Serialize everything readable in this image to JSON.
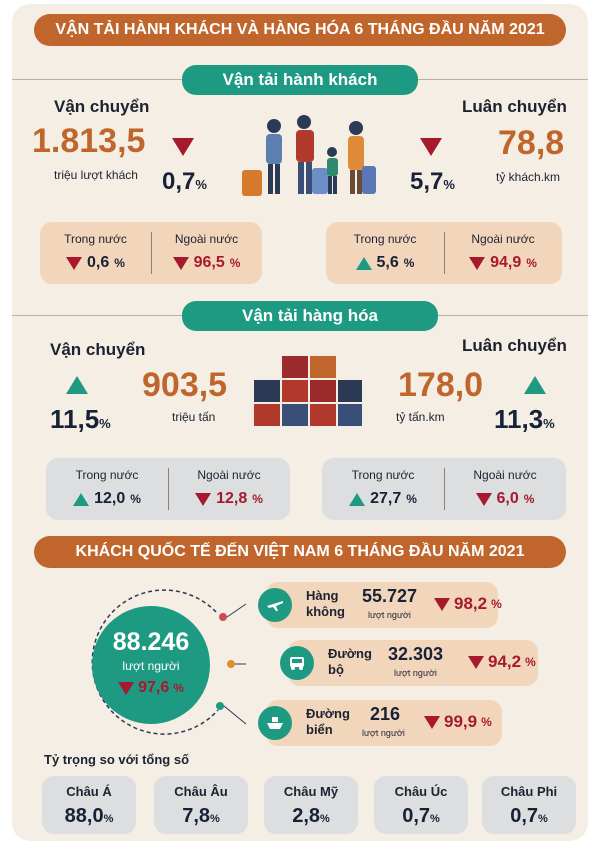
{
  "title": "VẬN TẢI HÀNH KHÁCH VÀ HÀNG HÓA  6 THÁNG ĐẦU NĂM 2021",
  "passenger": {
    "header": "Vận tải hành khách",
    "transport": {
      "label": "Vận chuyển",
      "value": "1.813,5",
      "unit": "triệu lượt khách",
      "change": "0,7",
      "dir": "down"
    },
    "rotation": {
      "label": "Luân chuyển",
      "value": "78,8",
      "unit": "tỷ khách.km",
      "change": "5,7",
      "dir": "down"
    },
    "left_box": {
      "domestic_label": "Trong nước",
      "domestic": "0,6",
      "domestic_dir": "down",
      "foreign_label": "Ngoài nước",
      "foreign": "96,5",
      "foreign_dir": "down"
    },
    "right_box": {
      "domestic_label": "Trong nước",
      "domestic": "5,6",
      "domestic_dir": "up",
      "foreign_label": "Ngoài nước",
      "foreign": "94,9",
      "foreign_dir": "down"
    }
  },
  "cargo": {
    "header": "Vận tải hàng hóa",
    "transport": {
      "label": "Vận chuyển",
      "value": "903,5",
      "unit": "triệu tấn",
      "change": "11,5",
      "dir": "up"
    },
    "rotation": {
      "label": "Luân chuyển",
      "value": "178,0",
      "unit": "tỷ tấn.km",
      "change": "11,3",
      "dir": "up"
    },
    "left_box": {
      "domestic_label": "Trong nước",
      "domestic": "12,0",
      "domestic_dir": "up",
      "foreign_label": "Ngoài nước",
      "foreign": "12,8",
      "foreign_dir": "down"
    },
    "right_box": {
      "domestic_label": "Trong nước",
      "domestic": "27,7",
      "domestic_dir": "up",
      "foreign_label": "Ngoài nước",
      "foreign": "6,0",
      "foreign_dir": "down"
    }
  },
  "visitors": {
    "title": "KHÁCH QUỐC TẾ ĐẾN VIỆT NAM 6 THÁNG ĐẦU NĂM 2021",
    "total": "88.246",
    "total_unit": "lượt người",
    "total_change": "97,6",
    "modes": [
      {
        "name_1": "Hàng",
        "name_2": "không",
        "value": "55.727",
        "unit": "lượt người",
        "change": "98,2",
        "icon": "airplane-icon"
      },
      {
        "name_1": "Đường",
        "name_2": "bộ",
        "value": "32.303",
        "unit": "lượt người",
        "change": "94,2",
        "icon": "bus-icon"
      },
      {
        "name_1": "Đường",
        "name_2": "biển",
        "value": "216",
        "unit": "lượt người",
        "change": "99,9",
        "icon": "ship-icon"
      }
    ],
    "share_title": "Tỷ trọng so với tổng số",
    "continents": [
      {
        "name": "Châu Á",
        "value": "88,0"
      },
      {
        "name": "Châu Âu",
        "value": "7,8"
      },
      {
        "name": "Châu Mỹ",
        "value": "2,8"
      },
      {
        "name": "Châu Úc",
        "value": "0,7"
      },
      {
        "name": "Châu Phi",
        "value": "0,7"
      }
    ]
  },
  "percent_sign": "%",
  "colors": {
    "orange": "#c0662c",
    "teal": "#1f9a82",
    "red": "#a6192e",
    "navy": "#172236",
    "tan": "#f2d6bc",
    "grey": "#dcdedf",
    "cream": "#f5eee4"
  }
}
